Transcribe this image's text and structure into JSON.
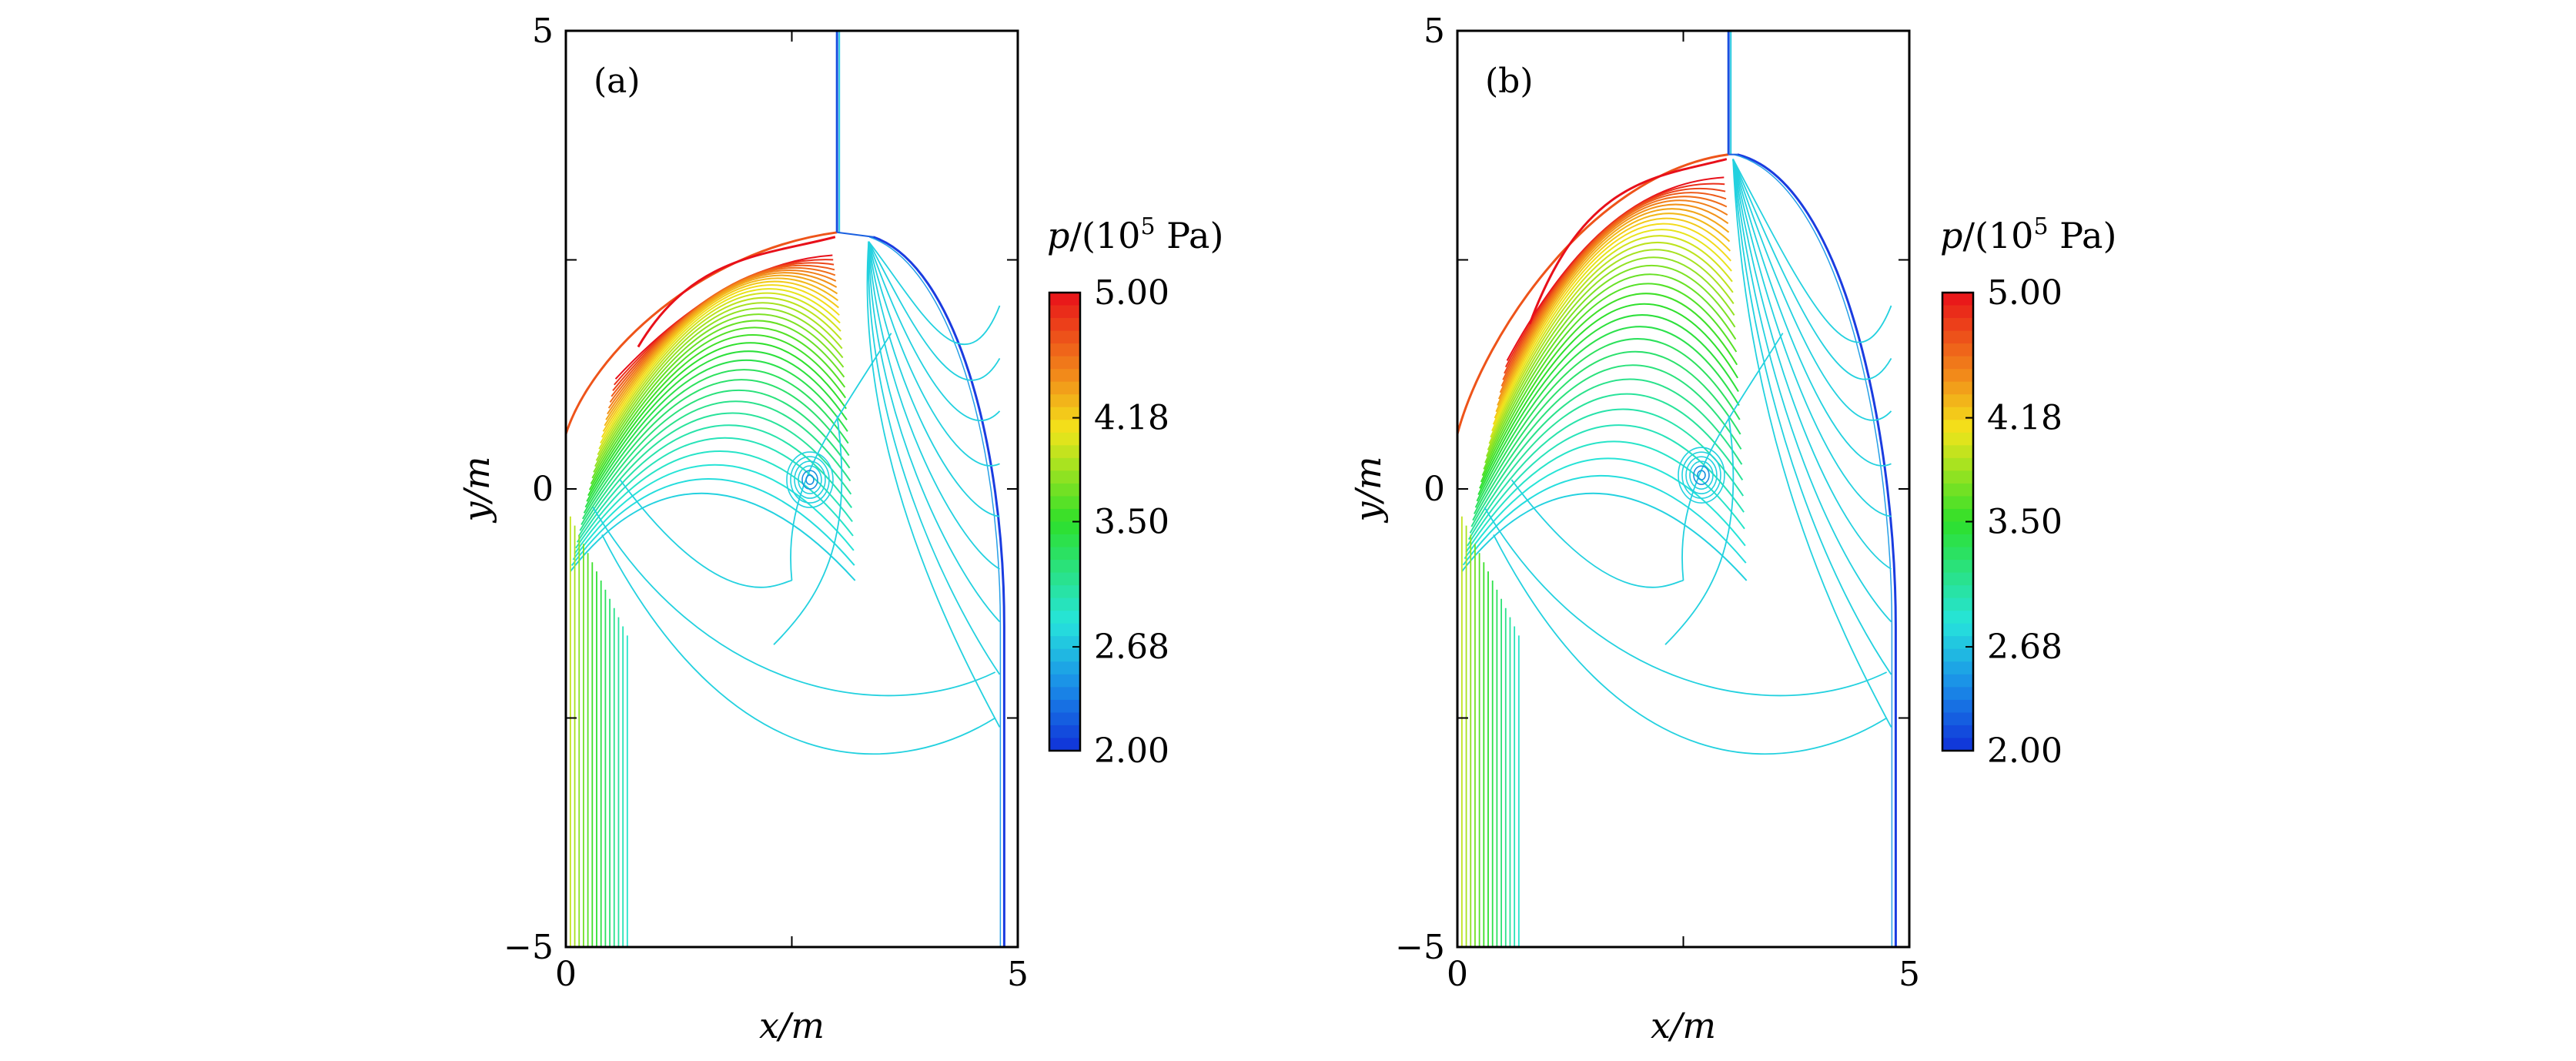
{
  "chart_data": [
    {
      "type": "contour",
      "panel_label": "(a)",
      "xlabel": "x/m",
      "ylabel": "y/m",
      "xlim": [
        0,
        5
      ],
      "ylim": [
        -5,
        5
      ],
      "xticks": [
        "0",
        "5"
      ],
      "yticks": [
        "−5",
        "0",
        "5"
      ],
      "grid": false,
      "colorbar": {
        "title_parts": [
          "p",
          "/(10",
          "5",
          " Pa)"
        ],
        "min": 2.0,
        "max": 5.0,
        "levels": 36,
        "tick_labels": [
          "5.00",
          "4.18",
          "3.50",
          "2.68",
          "2.00"
        ],
        "tick_values": [
          5.0,
          4.18,
          3.5,
          2.68,
          2.0
        ]
      },
      "features": {
        "wall_x": 3.0,
        "wall_top_y": 2.8,
        "shock_apex": [
          3.4,
          2.75
        ],
        "vortex_center": [
          2.7,
          0.1
        ],
        "right_shock_x": 4.85
      }
    },
    {
      "type": "contour",
      "panel_label": "(b)",
      "xlabel": "x/m",
      "ylabel": "y/m",
      "xlim": [
        0,
        5
      ],
      "ylim": [
        -5,
        5
      ],
      "xticks": [
        "0",
        "5"
      ],
      "yticks": [
        "−5",
        "0",
        "5"
      ],
      "grid": false,
      "colorbar": {
        "title_parts": [
          "p",
          "/(10",
          "5",
          " Pa)"
        ],
        "min": 2.0,
        "max": 5.0,
        "levels": 36,
        "tick_labels": [
          "5.00",
          "4.18",
          "3.50",
          "2.68",
          "2.00"
        ],
        "tick_values": [
          5.0,
          4.18,
          3.5,
          2.68,
          2.0
        ]
      },
      "features": {
        "wall_x": 3.0,
        "wall_top_y": 3.65,
        "shock_apex": [
          3.1,
          3.65
        ],
        "vortex_center": [
          2.7,
          0.15
        ],
        "right_shock_x": 4.85
      }
    }
  ]
}
